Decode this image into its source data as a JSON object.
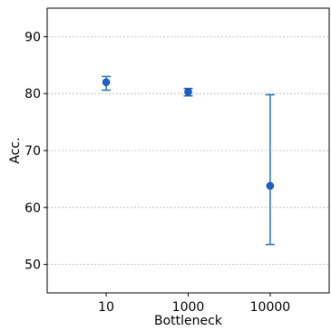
{
  "chart_data": {
    "type": "scatter",
    "xlabel": "Bottleneck",
    "ylabel": "Acc.",
    "categories": [
      "10",
      "1000",
      "10000"
    ],
    "yticks": [
      50,
      60,
      70,
      80,
      90
    ],
    "ylim": [
      45,
      95
    ],
    "grid": "horizontal dashed",
    "series": [
      {
        "values": [
          82.0,
          80.3,
          63.8
        ],
        "err_low": [
          80.6,
          79.6,
          53.5
        ],
        "err_high": [
          83.0,
          80.9,
          79.8
        ]
      }
    ],
    "colors": {
      "marker_fill": "#1f5fc9",
      "marker_edge": "#1a4fa8",
      "errorbar": "#1f77b4",
      "grid": "#b0b0b0",
      "axis": "#000000"
    }
  }
}
